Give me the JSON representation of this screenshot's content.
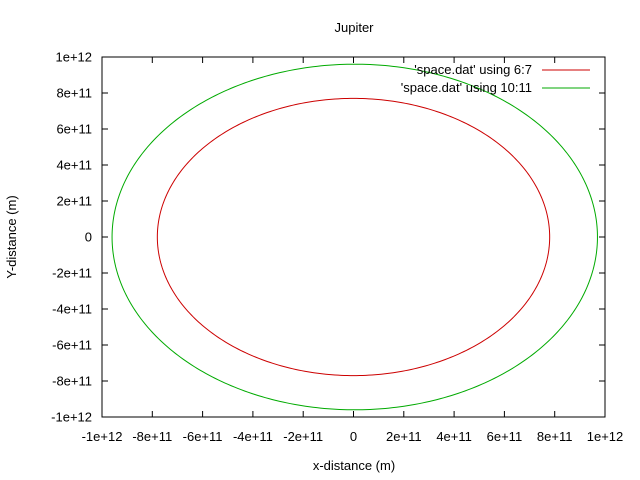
{
  "chart_data": {
    "type": "line",
    "title": "Jupiter",
    "xlabel": "x-distance (m)",
    "ylabel": "Y-distance (m)",
    "xlim": [
      -1000000000000.0,
      1000000000000.0
    ],
    "ylim": [
      -1000000000000.0,
      1000000000000.0
    ],
    "xticks": [
      {
        "value": -1000000000000.0,
        "label": "-1e+12"
      },
      {
        "value": -800000000000.0,
        "label": "-8e+11"
      },
      {
        "value": -600000000000.0,
        "label": "-6e+11"
      },
      {
        "value": -400000000000.0,
        "label": "-4e+11"
      },
      {
        "value": -200000000000.0,
        "label": "-2e+11"
      },
      {
        "value": 0,
        "label": "0"
      },
      {
        "value": 200000000000.0,
        "label": "2e+11"
      },
      {
        "value": 400000000000.0,
        "label": "4e+11"
      },
      {
        "value": 600000000000.0,
        "label": "6e+11"
      },
      {
        "value": 800000000000.0,
        "label": "8e+11"
      },
      {
        "value": 1000000000000.0,
        "label": "1e+12"
      }
    ],
    "yticks": [
      {
        "value": -1000000000000.0,
        "label": "-1e+12"
      },
      {
        "value": -800000000000.0,
        "label": "-8e+11"
      },
      {
        "value": -600000000000.0,
        "label": "-6e+11"
      },
      {
        "value": -400000000000.0,
        "label": "-4e+11"
      },
      {
        "value": -200000000000.0,
        "label": "-2e+11"
      },
      {
        "value": 0,
        "label": "0"
      },
      {
        "value": 200000000000.0,
        "label": "2e+11"
      },
      {
        "value": 400000000000.0,
        "label": "4e+11"
      },
      {
        "value": 600000000000.0,
        "label": "6e+11"
      },
      {
        "value": 800000000000.0,
        "label": "8e+11"
      },
      {
        "value": 1000000000000.0,
        "label": "1e+12"
      }
    ],
    "grid": false,
    "legend_position": "top-right",
    "series": [
      {
        "name": "'space.dat' using 6:7",
        "color": "#cc0000",
        "shape": "closed orbit",
        "x_extent": [
          -780000000000.0,
          780000000000.0
        ],
        "y_extent": [
          -770000000000.0,
          770000000000.0
        ]
      },
      {
        "name": "'space.dat' using 10:11",
        "color": "#00aa00",
        "shape": "closed orbit",
        "x_extent": [
          -960000000000.0,
          970000000000.0
        ],
        "y_extent": [
          -960000000000.0,
          960000000000.0
        ]
      }
    ]
  }
}
